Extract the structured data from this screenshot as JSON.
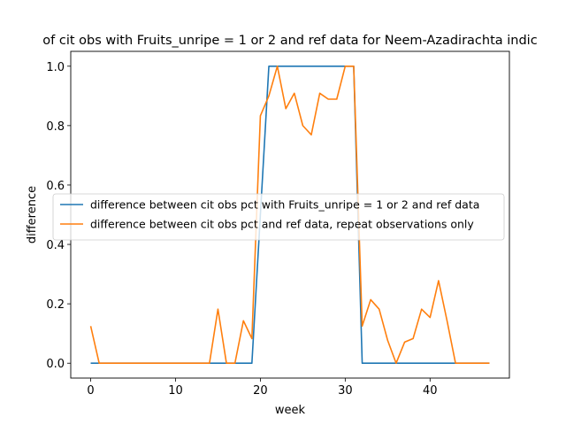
{
  "chart_data": {
    "type": "line",
    "title": "of cit obs with Fruits_unripe = 1 or 2 and ref data for Neem-Azadirachta indic",
    "xlabel": "week",
    "ylabel": "difference",
    "xlim": [
      -2.35,
      49.35
    ],
    "ylim": [
      -0.05,
      1.05
    ],
    "xticks": [
      0,
      10,
      20,
      30,
      40
    ],
    "yticks": [
      0.0,
      0.2,
      0.4,
      0.6,
      0.8,
      1.0
    ],
    "xtick_labels": [
      "0",
      "10",
      "20",
      "30",
      "40"
    ],
    "ytick_labels": [
      "0.0",
      "0.2",
      "0.4",
      "0.6",
      "0.8",
      "1.0"
    ],
    "grid": false,
    "legend_position": "center",
    "series": [
      {
        "name": "difference between cit obs pct with Fruits_unripe = 1 or 2 and ref data",
        "color": "#1f77b4",
        "x": [
          0,
          1,
          2,
          3,
          4,
          5,
          6,
          7,
          8,
          9,
          10,
          11,
          12,
          13,
          14,
          15,
          16,
          17,
          18,
          19,
          20,
          21,
          22,
          23,
          24,
          25,
          26,
          27,
          28,
          29,
          30,
          31,
          32,
          33,
          34,
          35,
          36,
          37,
          38,
          39,
          40,
          41,
          42,
          43,
          44,
          45,
          46,
          47
        ],
        "y": [
          0,
          0,
          0,
          0,
          0,
          0,
          0,
          0,
          0,
          0,
          0,
          0,
          0,
          0,
          0,
          0,
          0,
          0,
          0,
          0,
          0.5,
          1,
          1,
          1,
          1,
          1,
          1,
          1,
          1,
          1,
          1,
          1,
          0,
          0,
          0,
          0,
          0,
          0,
          0,
          0,
          0,
          0,
          0,
          0,
          0,
          0,
          0,
          0
        ]
      },
      {
        "name": "difference between cit obs pct and ref data, repeat observations only",
        "color": "#ff7f0e",
        "x": [
          0,
          1,
          2,
          3,
          4,
          5,
          6,
          7,
          8,
          9,
          10,
          11,
          12,
          13,
          14,
          15,
          16,
          17,
          18,
          19,
          20,
          21,
          22,
          23,
          24,
          25,
          26,
          27,
          28,
          29,
          30,
          31,
          32,
          33,
          34,
          35,
          36,
          37,
          38,
          39,
          40,
          41,
          42,
          43,
          44,
          45,
          46,
          47
        ],
        "y": [
          0.125,
          0,
          0,
          0,
          0,
          0,
          0,
          0,
          0,
          0,
          0,
          0,
          0,
          0,
          0,
          0.182,
          0,
          0,
          0.143,
          0.083,
          0.833,
          0.9,
          1,
          0.857,
          0.909,
          0.8,
          0.769,
          0.909,
          0.889,
          0.889,
          1,
          1,
          0.125,
          0.214,
          0.182,
          0.077,
          0,
          0.071,
          0.083,
          0.182,
          0.154,
          0.278,
          0.143,
          0,
          0,
          0,
          0,
          0
        ]
      }
    ]
  }
}
